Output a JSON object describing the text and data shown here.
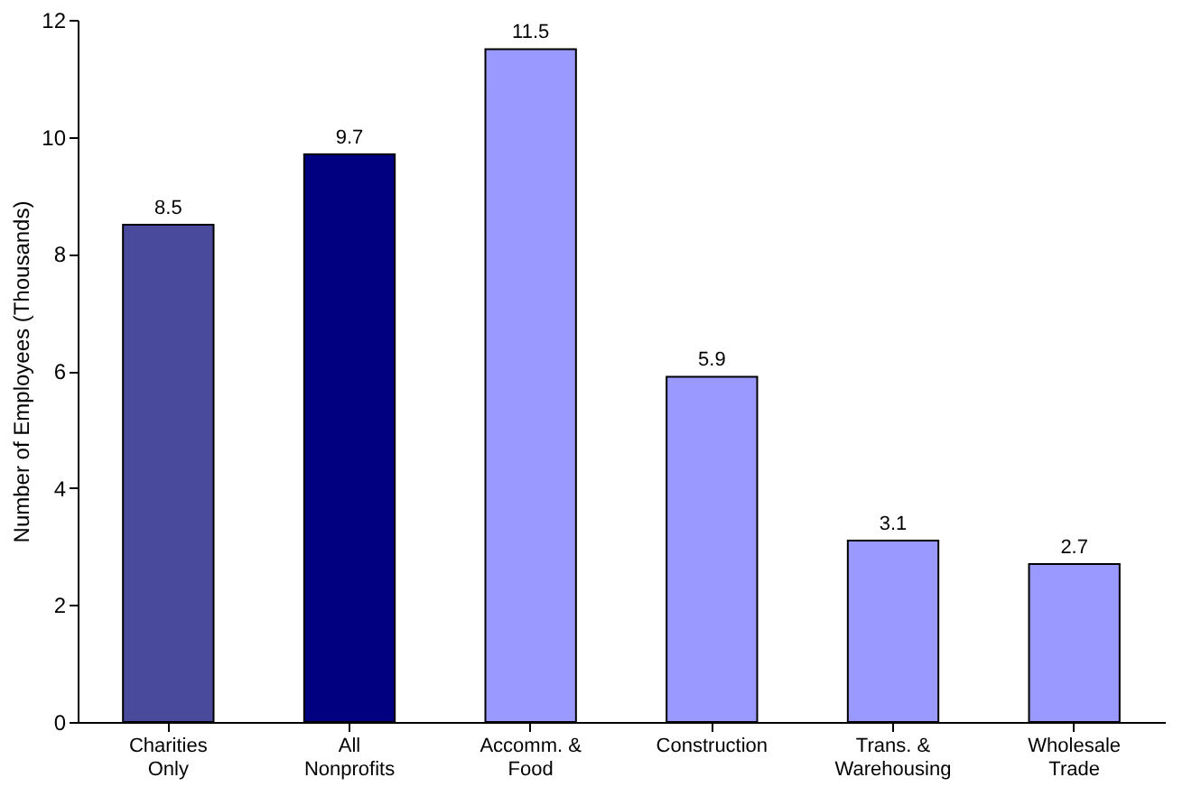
{
  "chart_data": {
    "type": "bar",
    "ylabel": "Number of Employees (Thousands)",
    "categories": [
      "Charities Only",
      "All Nonprofits",
      "Accomm. & Food",
      "Construction",
      "Trans. & Warehousing",
      "Wholesale Trade"
    ],
    "values": [
      8.5,
      9.7,
      11.5,
      5.9,
      3.1,
      2.7
    ],
    "colors": [
      "#4a4a9c",
      "#000080",
      "#9999ff",
      "#9999ff",
      "#9999ff",
      "#9999ff"
    ],
    "ylim": [
      0,
      12
    ],
    "yticks": [
      0,
      2,
      4,
      6,
      8,
      10,
      12
    ],
    "grid": false,
    "data_labels": true
  }
}
